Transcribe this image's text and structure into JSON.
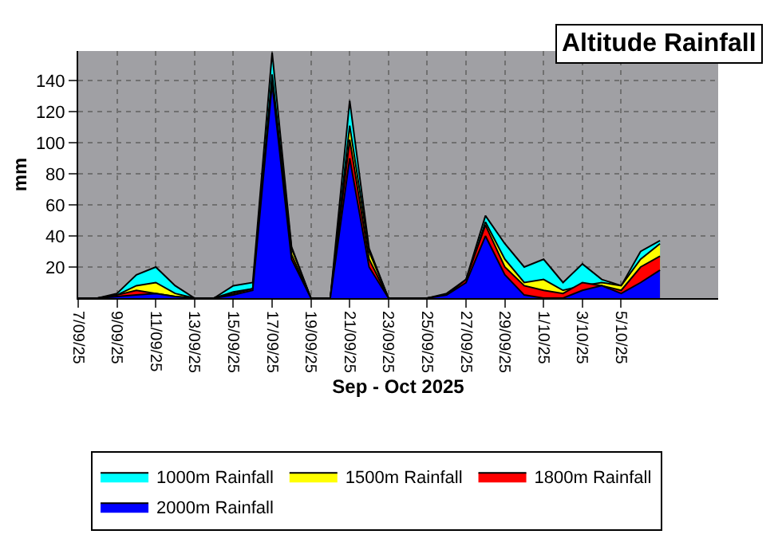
{
  "chart_data": {
    "type": "area",
    "title": "Altitude Rainfall",
    "xlabel": "Sep - Oct 2025",
    "ylabel": "mm",
    "x": [
      "2025-09-07",
      "2025-09-08",
      "2025-09-09",
      "2025-09-10",
      "2025-09-11",
      "2025-09-12",
      "2025-09-13",
      "2025-09-14",
      "2025-09-15",
      "2025-09-16",
      "2025-09-17",
      "2025-09-18",
      "2025-09-19",
      "2025-09-20",
      "2025-09-21",
      "2025-09-22",
      "2025-09-23",
      "2025-09-24",
      "2025-09-25",
      "2025-09-26",
      "2025-09-27",
      "2025-09-28",
      "2025-09-29",
      "2025-09-30",
      "2025-10-01",
      "2025-10-02",
      "2025-10-03",
      "2025-10-04",
      "2025-10-05",
      "2025-10-06",
      "2025-10-07"
    ],
    "series": [
      {
        "name": "1000m Rainfall",
        "color": "#00ffff",
        "values": [
          0,
          0,
          3,
          15,
          20,
          8,
          0,
          0,
          8,
          10,
          158,
          33,
          0,
          0,
          127,
          32,
          0,
          0,
          0,
          3,
          12,
          53,
          35,
          20,
          25,
          10,
          22,
          12,
          8,
          30,
          37
        ]
      },
      {
        "name": "1500m Rainfall",
        "color": "#ffff00",
        "values": [
          0,
          0,
          2,
          8,
          10,
          3,
          0,
          0,
          4,
          6,
          144,
          32,
          0,
          0,
          111,
          30,
          0,
          0,
          0,
          2,
          10,
          49,
          25,
          10,
          12,
          5,
          8,
          10,
          8,
          25,
          35
        ]
      },
      {
        "name": "1800m Rainfall",
        "color": "#ff0000",
        "values": [
          0,
          0,
          2,
          5,
          3,
          1,
          0,
          0,
          3,
          6,
          140,
          28,
          0,
          0,
          102,
          25,
          0,
          0,
          0,
          2,
          12,
          47,
          20,
          8,
          5,
          3,
          10,
          8,
          5,
          20,
          27
        ]
      },
      {
        "name": "2000m Rainfall",
        "color": "#0000ff",
        "values": [
          0,
          0,
          1,
          2,
          3,
          1,
          0,
          0,
          2,
          5,
          138,
          25,
          0,
          0,
          90,
          20,
          0,
          0,
          0,
          2,
          10,
          40,
          15,
          2,
          0,
          0,
          5,
          8,
          3,
          10,
          18
        ]
      }
    ],
    "xlim": [
      "2025-09-07",
      "2025-10-10"
    ],
    "xticks": [
      {
        "value": "2025-09-07",
        "label": "7/09/25"
      },
      {
        "value": "2025-09-09",
        "label": "9/09/25"
      },
      {
        "value": "2025-09-11",
        "label": "11/09/25"
      },
      {
        "value": "2025-09-13",
        "label": "13/09/25"
      },
      {
        "value": "2025-09-15",
        "label": "15/09/25"
      },
      {
        "value": "2025-09-17",
        "label": "17/09/25"
      },
      {
        "value": "2025-09-19",
        "label": "19/09/25"
      },
      {
        "value": "2025-09-21",
        "label": "21/09/25"
      },
      {
        "value": "2025-09-23",
        "label": "23/09/25"
      },
      {
        "value": "2025-09-25",
        "label": "25/09/25"
      },
      {
        "value": "2025-09-27",
        "label": "27/09/25"
      },
      {
        "value": "2025-09-29",
        "label": "29/09/25"
      },
      {
        "value": "2025-10-01",
        "label": "1/10/25"
      },
      {
        "value": "2025-10-03",
        "label": "3/10/25"
      },
      {
        "value": "2025-10-05",
        "label": "5/10/25"
      }
    ],
    "ylim": [
      0,
      159
    ],
    "yticks": [
      20,
      40,
      60,
      80,
      100,
      120,
      140
    ],
    "grid": true,
    "legend": "bottom"
  }
}
